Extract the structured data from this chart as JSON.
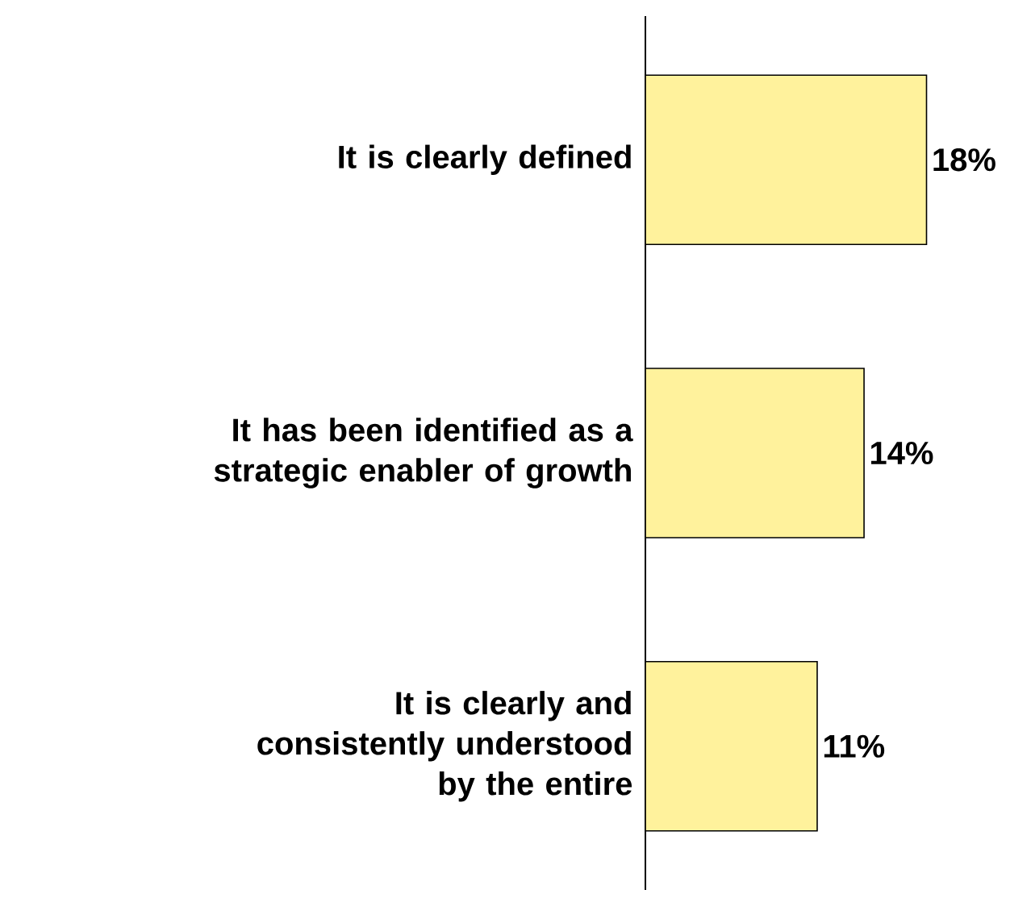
{
  "chart_data": {
    "type": "bar",
    "orientation": "horizontal",
    "categories": [
      "It is clearly defined",
      "It has been identified as a strategic enabler of growth",
      "It is clearly and consistently understood by the entire"
    ],
    "values": [
      18,
      14,
      11
    ],
    "color": "#fff29c",
    "data_labels": true,
    "value_labels": [
      "18%",
      "14%",
      "11%"
    ]
  }
}
